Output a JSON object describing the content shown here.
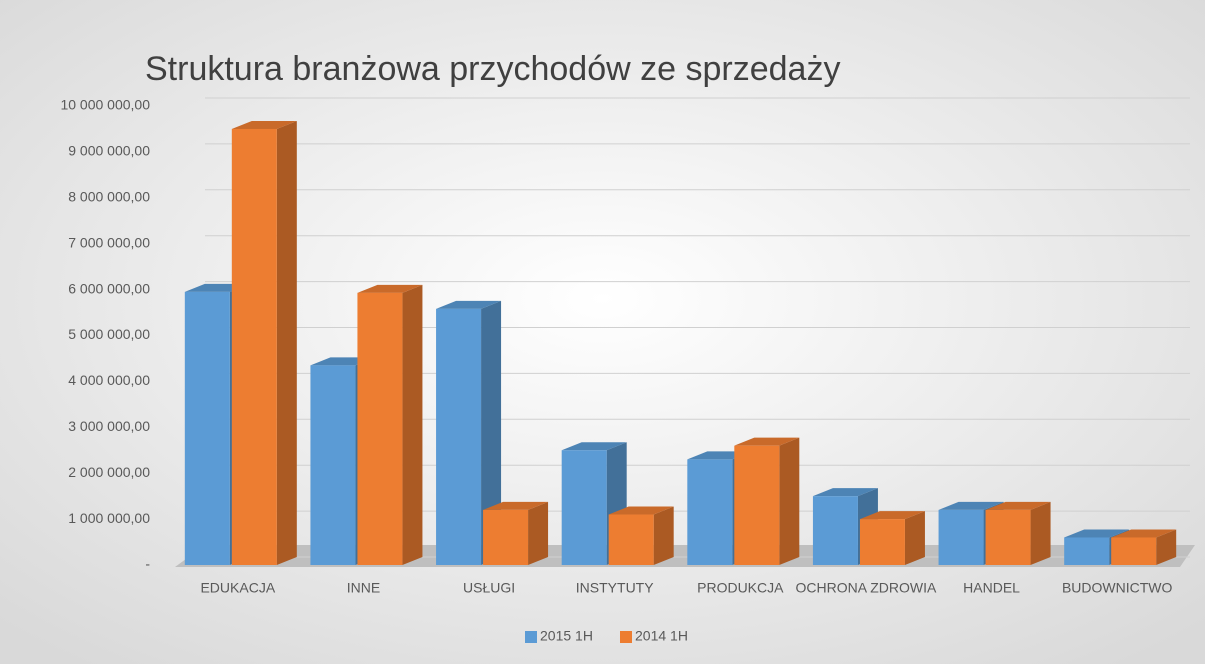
{
  "chart_data": {
    "type": "bar3d",
    "title": "Struktura branżowa przychodów ze sprzedaży",
    "categories": [
      "EDUKACJA",
      "INNE",
      "USŁUGI",
      "INSTYTUTY",
      "PRODUKCJA",
      "OCHRONA ZDROWIA",
      "HANDEL",
      "BUDOWNICTWO"
    ],
    "series": [
      {
        "name": "2015 1H",
        "color": "#5b9bd5",
        "values": [
          5950000,
          4350000,
          5580000,
          2500000,
          2300000,
          1500000,
          1200000,
          600000
        ]
      },
      {
        "name": "2014 1H",
        "color": "#ed7d31",
        "values": [
          9500000,
          5930000,
          1200000,
          1100000,
          2600000,
          1000000,
          1200000,
          600000
        ]
      }
    ],
    "ylim": [
      0,
      10000000
    ],
    "yticks": [
      {
        "value": 0,
        "label": "-"
      },
      {
        "value": 1000000,
        "label": "1 000 000,00"
      },
      {
        "value": 2000000,
        "label": "2 000 000,00"
      },
      {
        "value": 3000000,
        "label": "3 000 000,00"
      },
      {
        "value": 4000000,
        "label": "4 000 000,00"
      },
      {
        "value": 5000000,
        "label": "5 000 000,00"
      },
      {
        "value": 6000000,
        "label": "6 000 000,00"
      },
      {
        "value": 7000000,
        "label": "7 000 000,00"
      },
      {
        "value": 8000000,
        "label": "8 000 000,00"
      },
      {
        "value": 9000000,
        "label": "9 000 000,00"
      },
      {
        "value": 10000000,
        "label": "10 000 000,00"
      }
    ],
    "grid": true,
    "legend": "bottom"
  }
}
